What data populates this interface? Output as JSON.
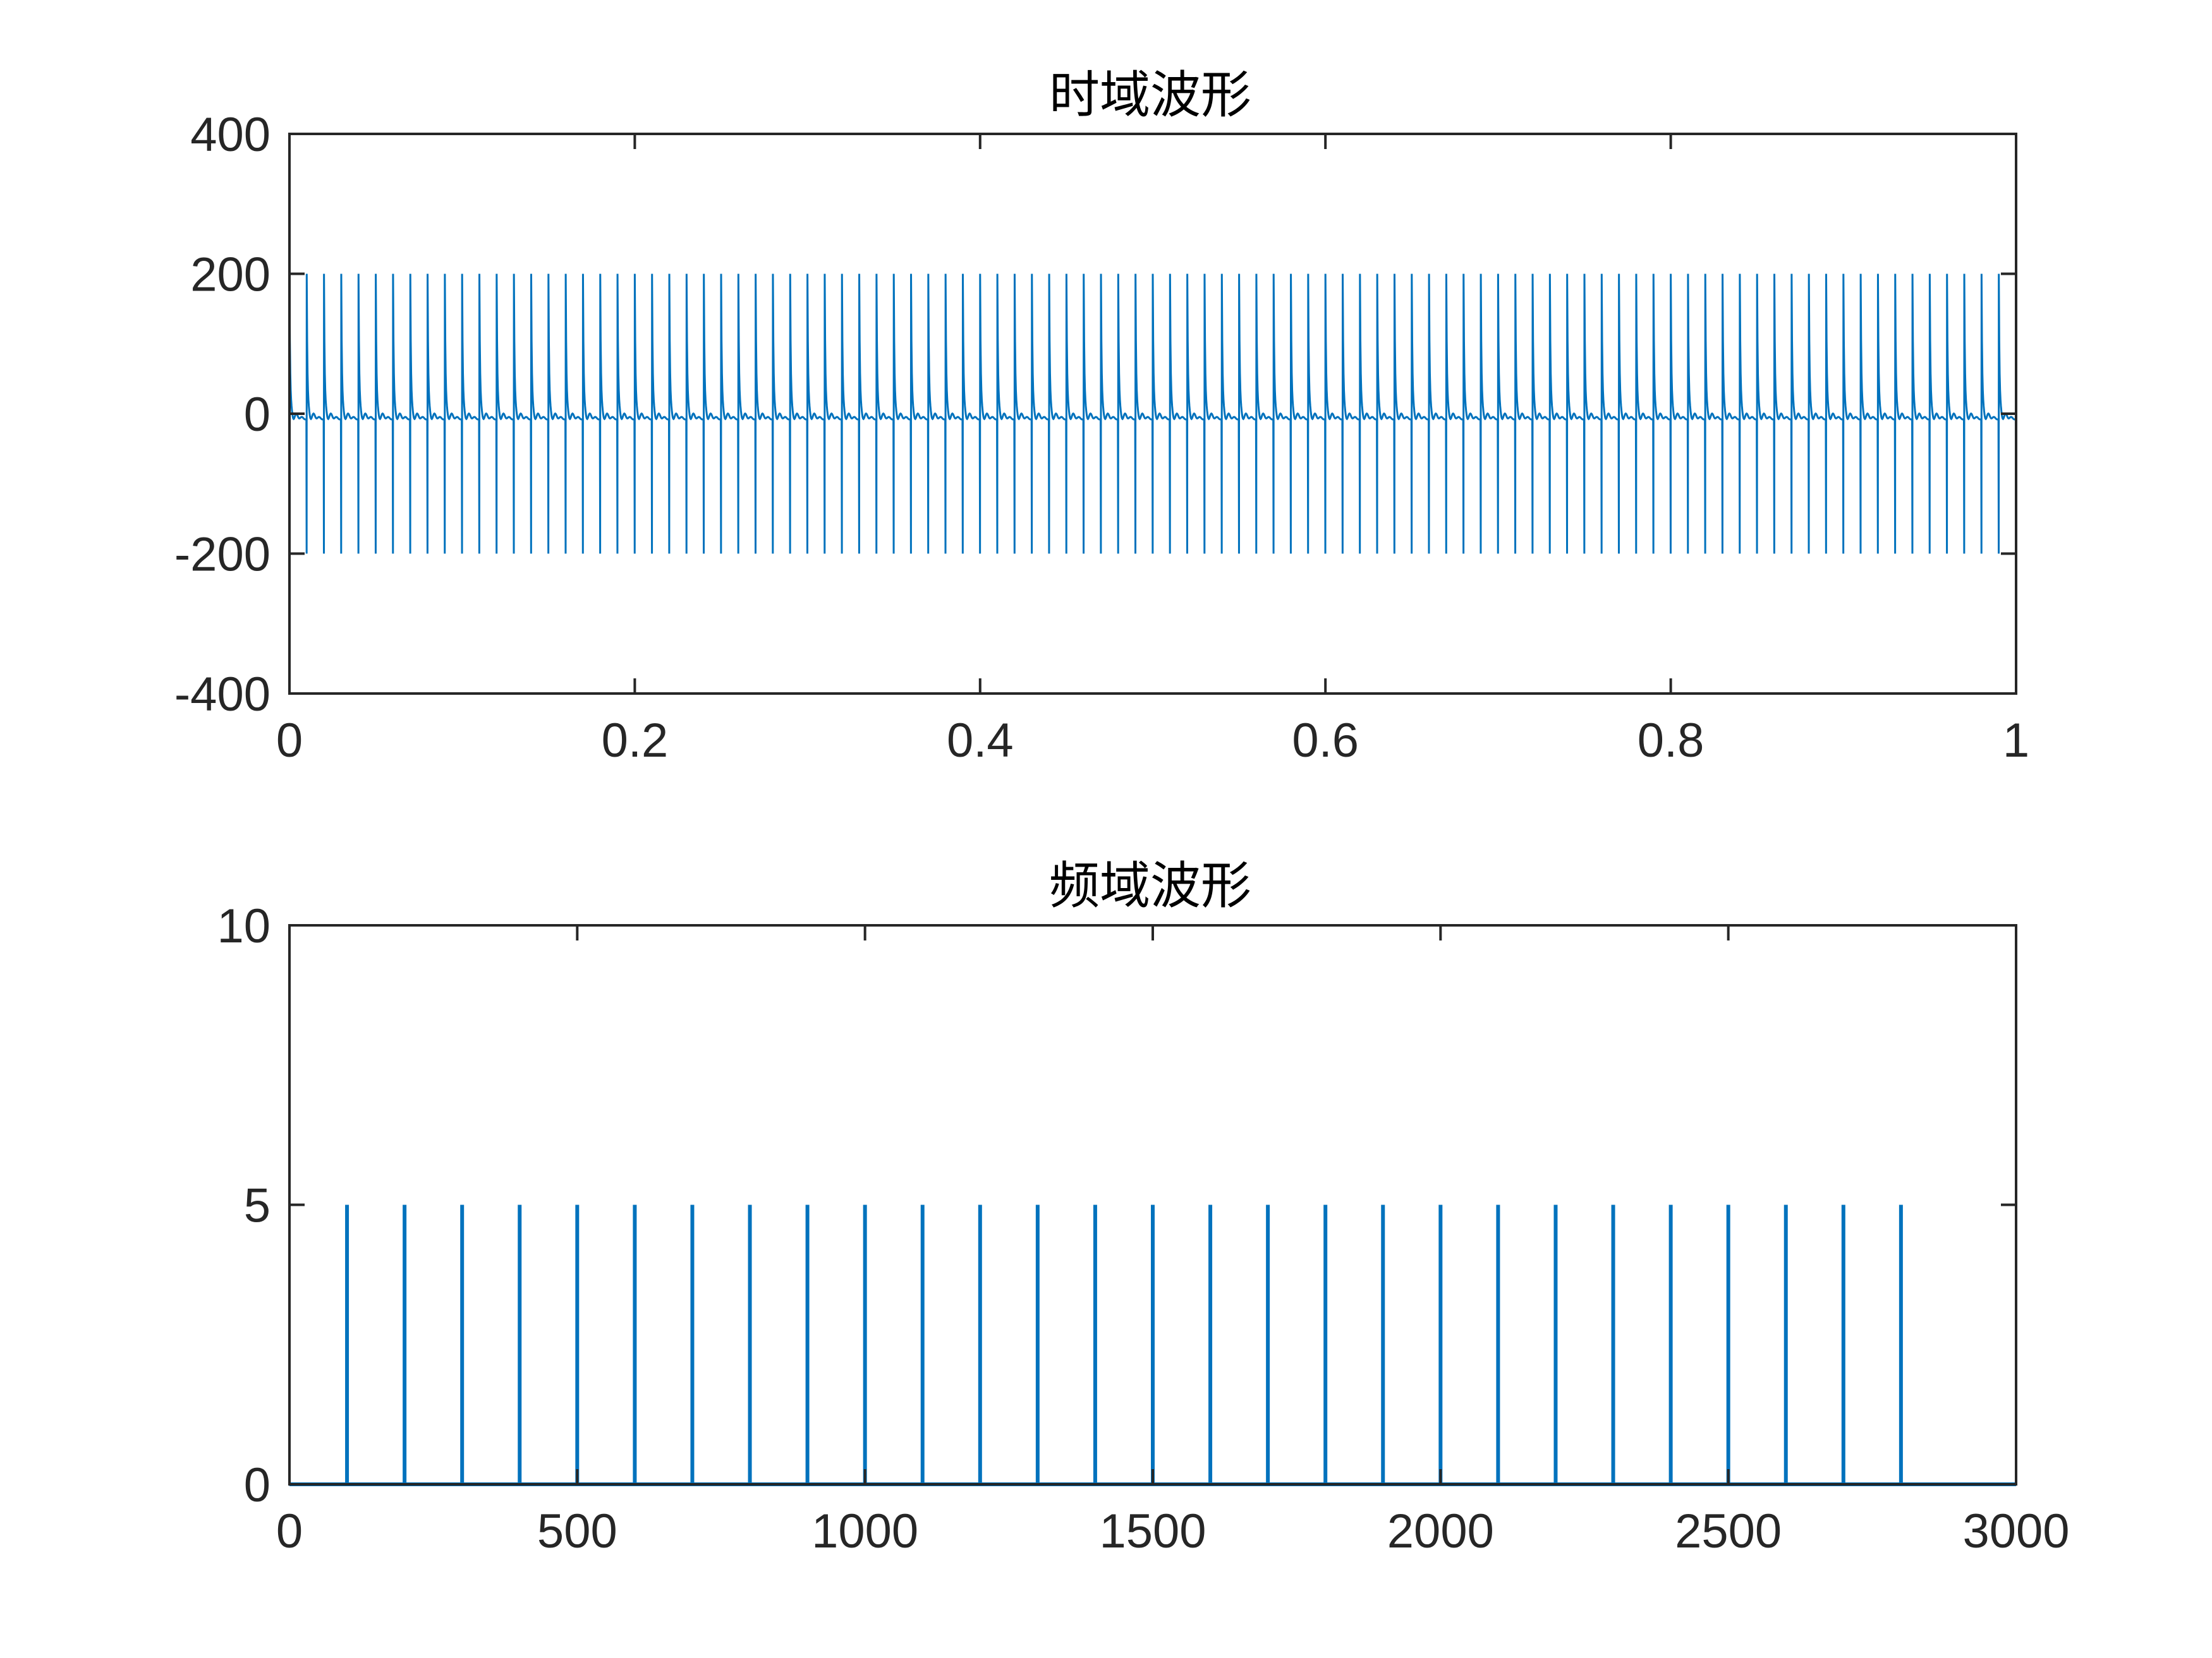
{
  "colors": {
    "series": "#0072BD",
    "axes": "#262626",
    "background": "#ffffff"
  },
  "chart_data": [
    {
      "type": "line",
      "title": "时域波形",
      "xlabel": "",
      "ylabel": "",
      "xlim": [
        0,
        1
      ],
      "ylim": [
        -400,
        400
      ],
      "xticks": [
        0,
        0.2,
        0.4,
        0.6,
        0.8,
        1
      ],
      "xtick_labels": [
        "0",
        "0.2",
        "0.4",
        "0.6",
        "0.8",
        "1"
      ],
      "yticks": [
        -400,
        -200,
        0,
        200,
        400
      ],
      "ytick_labels": [
        "-400",
        "-200",
        "0",
        "200",
        "400"
      ],
      "grid": false,
      "series": [
        {
          "signal": "periodic sawtooth-like spike train",
          "period": 0.01,
          "x_start": 0,
          "x_end": 1,
          "peak_max": 200,
          "peak_min": -200,
          "baseline": 0
        }
      ]
    },
    {
      "type": "line",
      "title": "频域波形",
      "xlabel": "",
      "ylabel": "",
      "xlim": [
        0,
        3000
      ],
      "ylim": [
        0,
        10
      ],
      "xticks": [
        0,
        500,
        1000,
        1500,
        2000,
        2500,
        3000
      ],
      "xtick_labels": [
        "0",
        "500",
        "1000",
        "1500",
        "2000",
        "2500",
        "3000"
      ],
      "yticks": [
        0,
        5,
        10
      ],
      "ytick_labels": [
        "0",
        "5",
        "10"
      ],
      "grid": false,
      "series": [
        {
          "x": [
            100,
            200,
            300,
            400,
            500,
            600,
            700,
            800,
            900,
            1000,
            1100,
            1200,
            1300,
            1400,
            1500,
            1600,
            1700,
            1800,
            1900,
            2000,
            2100,
            2200,
            2300,
            2400,
            2500,
            2600,
            2700,
            2800
          ],
          "values": [
            5,
            5,
            5,
            5,
            5,
            5,
            5,
            5,
            5,
            5,
            5,
            5,
            5,
            5,
            5,
            5,
            5,
            5,
            5,
            5,
            5,
            5,
            5,
            5,
            5,
            5,
            5,
            5
          ],
          "baseline": 0
        }
      ]
    }
  ]
}
